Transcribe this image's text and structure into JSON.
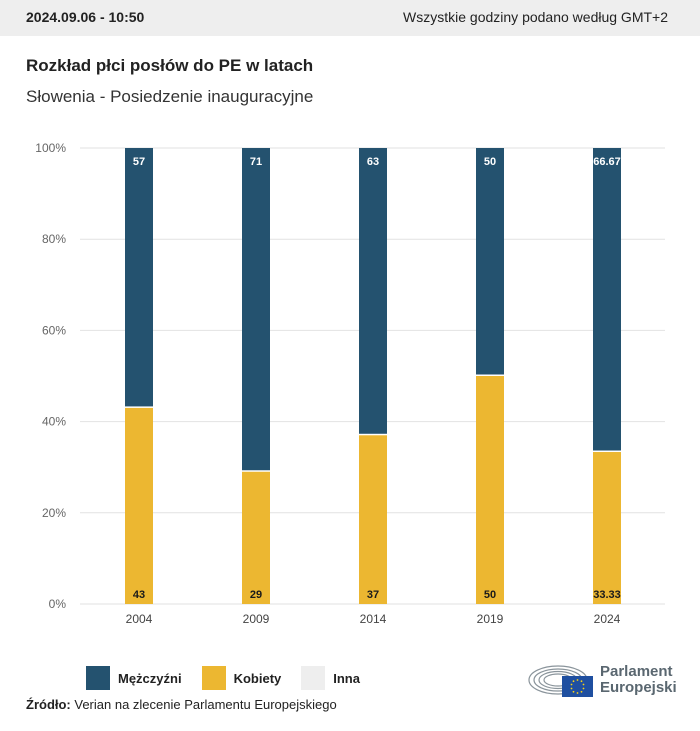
{
  "header": {
    "datetime": "2024.09.06 - 10:50",
    "timezone_note": "Wszystkie godziny podano według GMT+2"
  },
  "title": "Rozkład płci posłów do PE w latach",
  "subtitle": "Słowenia - Posiedzenie inauguracyjne",
  "colors": {
    "men": "#24526f",
    "women": "#ecb731",
    "other": "#eeeeee",
    "grid": "#e2e2e2"
  },
  "chart_data": {
    "type": "bar",
    "stacked": true,
    "title": "Rozkład płci posłów do PE w latach",
    "subtitle": "Słowenia - Posiedzenie inauguracyjne",
    "xlabel": "",
    "ylabel": "",
    "categories": [
      "2004",
      "2009",
      "2014",
      "2019",
      "2024"
    ],
    "series": [
      {
        "name": "Kobiety",
        "values": [
          43,
          29,
          37,
          50,
          33.33
        ],
        "labels": [
          "43",
          "29",
          "37",
          "50",
          "33.33"
        ]
      },
      {
        "name": "Mężczyźni",
        "values": [
          57,
          71,
          63,
          50,
          66.67
        ],
        "labels": [
          "57",
          "71",
          "63",
          "50",
          "66.67"
        ]
      },
      {
        "name": "Inna",
        "values": [
          0,
          0,
          0,
          0,
          0
        ]
      }
    ],
    "ylim": [
      0,
      100
    ],
    "yticks": [
      "0%",
      "20%",
      "40%",
      "60%",
      "80%",
      "100%"
    ],
    "grid": true,
    "legend_position": "bottom-left"
  },
  "legend": [
    {
      "label": "Mężczyźni",
      "key": "men"
    },
    {
      "label": "Kobiety",
      "key": "women"
    },
    {
      "label": "Inna",
      "key": "other"
    }
  ],
  "source": {
    "label": "Źródło:",
    "text": " Verian na zlecenie Parlamentu Europejskiego"
  },
  "logo": {
    "line1": "Parlament",
    "line2": "Europejski"
  }
}
